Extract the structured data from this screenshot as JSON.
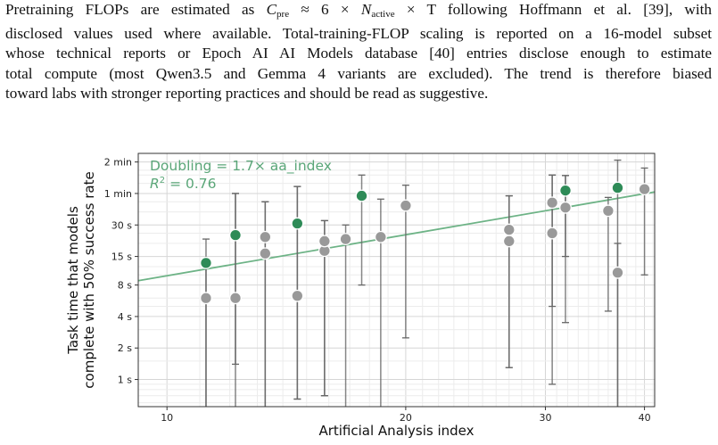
{
  "paragraph": {
    "line1_before": "Pretraining FLOPs are estimated as ",
    "math_c": "C",
    "math_c_sub": "pre",
    "math_approx": " ≈ 6 × ",
    "math_n": "N",
    "math_n_sub": "active",
    "math_times_t": " × T",
    "line1_after": " following Hoffmann et al. [39], with",
    "line2": "disclosed values used where available. Total-training-FLOP scaling is reported on a 16-model subset",
    "line3": "whose technical reports or Epoch AI AI Models database [40] entries disclose enough to estimate",
    "line4": "total compute (most Qwen3.5 and Gemma 4 variants are excluded). The trend is therefore biased",
    "line5": "toward labs with stronger reporting practices and should be read as suggestive."
  },
  "chart_data": {
    "type": "scatter",
    "xlabel": "Artificial Analysis index",
    "ylabel_line1": "Task time that models",
    "ylabel_line2": "complete with 50% success rate",
    "annotation_line1": "Doubling = 1.7× aa_index",
    "annotation_line2": "R² = 0.76",
    "x_scale": "log",
    "y_scale": "log",
    "xlim": [
      9.2,
      41.2
    ],
    "ylim_seconds": [
      0.55,
      145
    ],
    "x_ticks": [
      {
        "value": 10,
        "label": "10"
      },
      {
        "value": 20,
        "label": "20"
      },
      {
        "value": 30,
        "label": "30"
      },
      {
        "value": 40,
        "label": "40"
      }
    ],
    "y_ticks": [
      {
        "value": 1,
        "label": "1 s"
      },
      {
        "value": 2,
        "label": "2 s"
      },
      {
        "value": 4,
        "label": "4 s"
      },
      {
        "value": 8,
        "label": "8 s"
      },
      {
        "value": 15,
        "label": "15 s"
      },
      {
        "value": 30,
        "label": "30 s"
      },
      {
        "value": 60,
        "label": "1 min"
      },
      {
        "value": 120,
        "label": "2 min"
      }
    ],
    "grid": true,
    "trend_line": {
      "color": "#6db386",
      "x": [
        9.2,
        41.2
      ],
      "y_seconds": [
        8.8,
        62
      ]
    },
    "colors": {
      "highlight": "#2e8b57",
      "other": "#999999",
      "errorbar": "#666666"
    },
    "points": [
      {
        "x": 11.2,
        "y": 6.0,
        "ylo": 0.55,
        "yhi": 13,
        "group": "other"
      },
      {
        "x": 11.2,
        "y": 13,
        "ylo": 0.55,
        "yhi": 22,
        "group": "highlight"
      },
      {
        "x": 12.2,
        "y": 6.0,
        "ylo": 0.55,
        "yhi": 60,
        "group": "other"
      },
      {
        "x": 12.2,
        "y": 24,
        "ylo": 1.4,
        "yhi": 60,
        "group": "highlight"
      },
      {
        "x": 13.3,
        "y": 16,
        "ylo": 0.55,
        "yhi": 50,
        "group": "other"
      },
      {
        "x": 13.3,
        "y": 23,
        "ylo": 0.55,
        "yhi": 50,
        "group": "other"
      },
      {
        "x": 14.6,
        "y": 6.3,
        "ylo": 0.65,
        "yhi": 70,
        "group": "other"
      },
      {
        "x": 14.6,
        "y": 31,
        "ylo": 0.65,
        "yhi": 70,
        "group": "highlight"
      },
      {
        "x": 15.8,
        "y": 17,
        "ylo": 0.7,
        "yhi": 33,
        "group": "other"
      },
      {
        "x": 15.8,
        "y": 21,
        "ylo": 0.7,
        "yhi": 33,
        "group": "other"
      },
      {
        "x": 16.8,
        "y": 22,
        "ylo": 0.55,
        "yhi": 30,
        "group": "other"
      },
      {
        "x": 17.6,
        "y": 57,
        "ylo": 8,
        "yhi": 90,
        "group": "highlight"
      },
      {
        "x": 18.6,
        "y": 23,
        "ylo": 0.55,
        "yhi": 53,
        "group": "other"
      },
      {
        "x": 20.0,
        "y": 46,
        "ylo": 2.5,
        "yhi": 72,
        "group": "other"
      },
      {
        "x": 27.0,
        "y": 21,
        "ylo": 1.3,
        "yhi": 57,
        "group": "other"
      },
      {
        "x": 27.0,
        "y": 27,
        "ylo": 1.3,
        "yhi": 57,
        "group": "other"
      },
      {
        "x": 30.6,
        "y": 25,
        "ylo": 0.9,
        "yhi": 90,
        "group": "other"
      },
      {
        "x": 30.6,
        "y": 49,
        "ylo": 5,
        "yhi": 90,
        "group": "other"
      },
      {
        "x": 31.8,
        "y": 44,
        "ylo": 15,
        "yhi": 89,
        "group": "other"
      },
      {
        "x": 31.8,
        "y": 64,
        "ylo": 3.5,
        "yhi": 89,
        "group": "highlight"
      },
      {
        "x": 36.0,
        "y": 41,
        "ylo": 4.5,
        "yhi": 55,
        "group": "other"
      },
      {
        "x": 37.0,
        "y": 10.5,
        "ylo": 0.55,
        "yhi": 20,
        "group": "other"
      },
      {
        "x": 37.0,
        "y": 68,
        "ylo": 0.55,
        "yhi": 125,
        "group": "highlight"
      },
      {
        "x": 40.0,
        "y": 66,
        "ylo": 10,
        "yhi": 105,
        "group": "other"
      }
    ]
  }
}
